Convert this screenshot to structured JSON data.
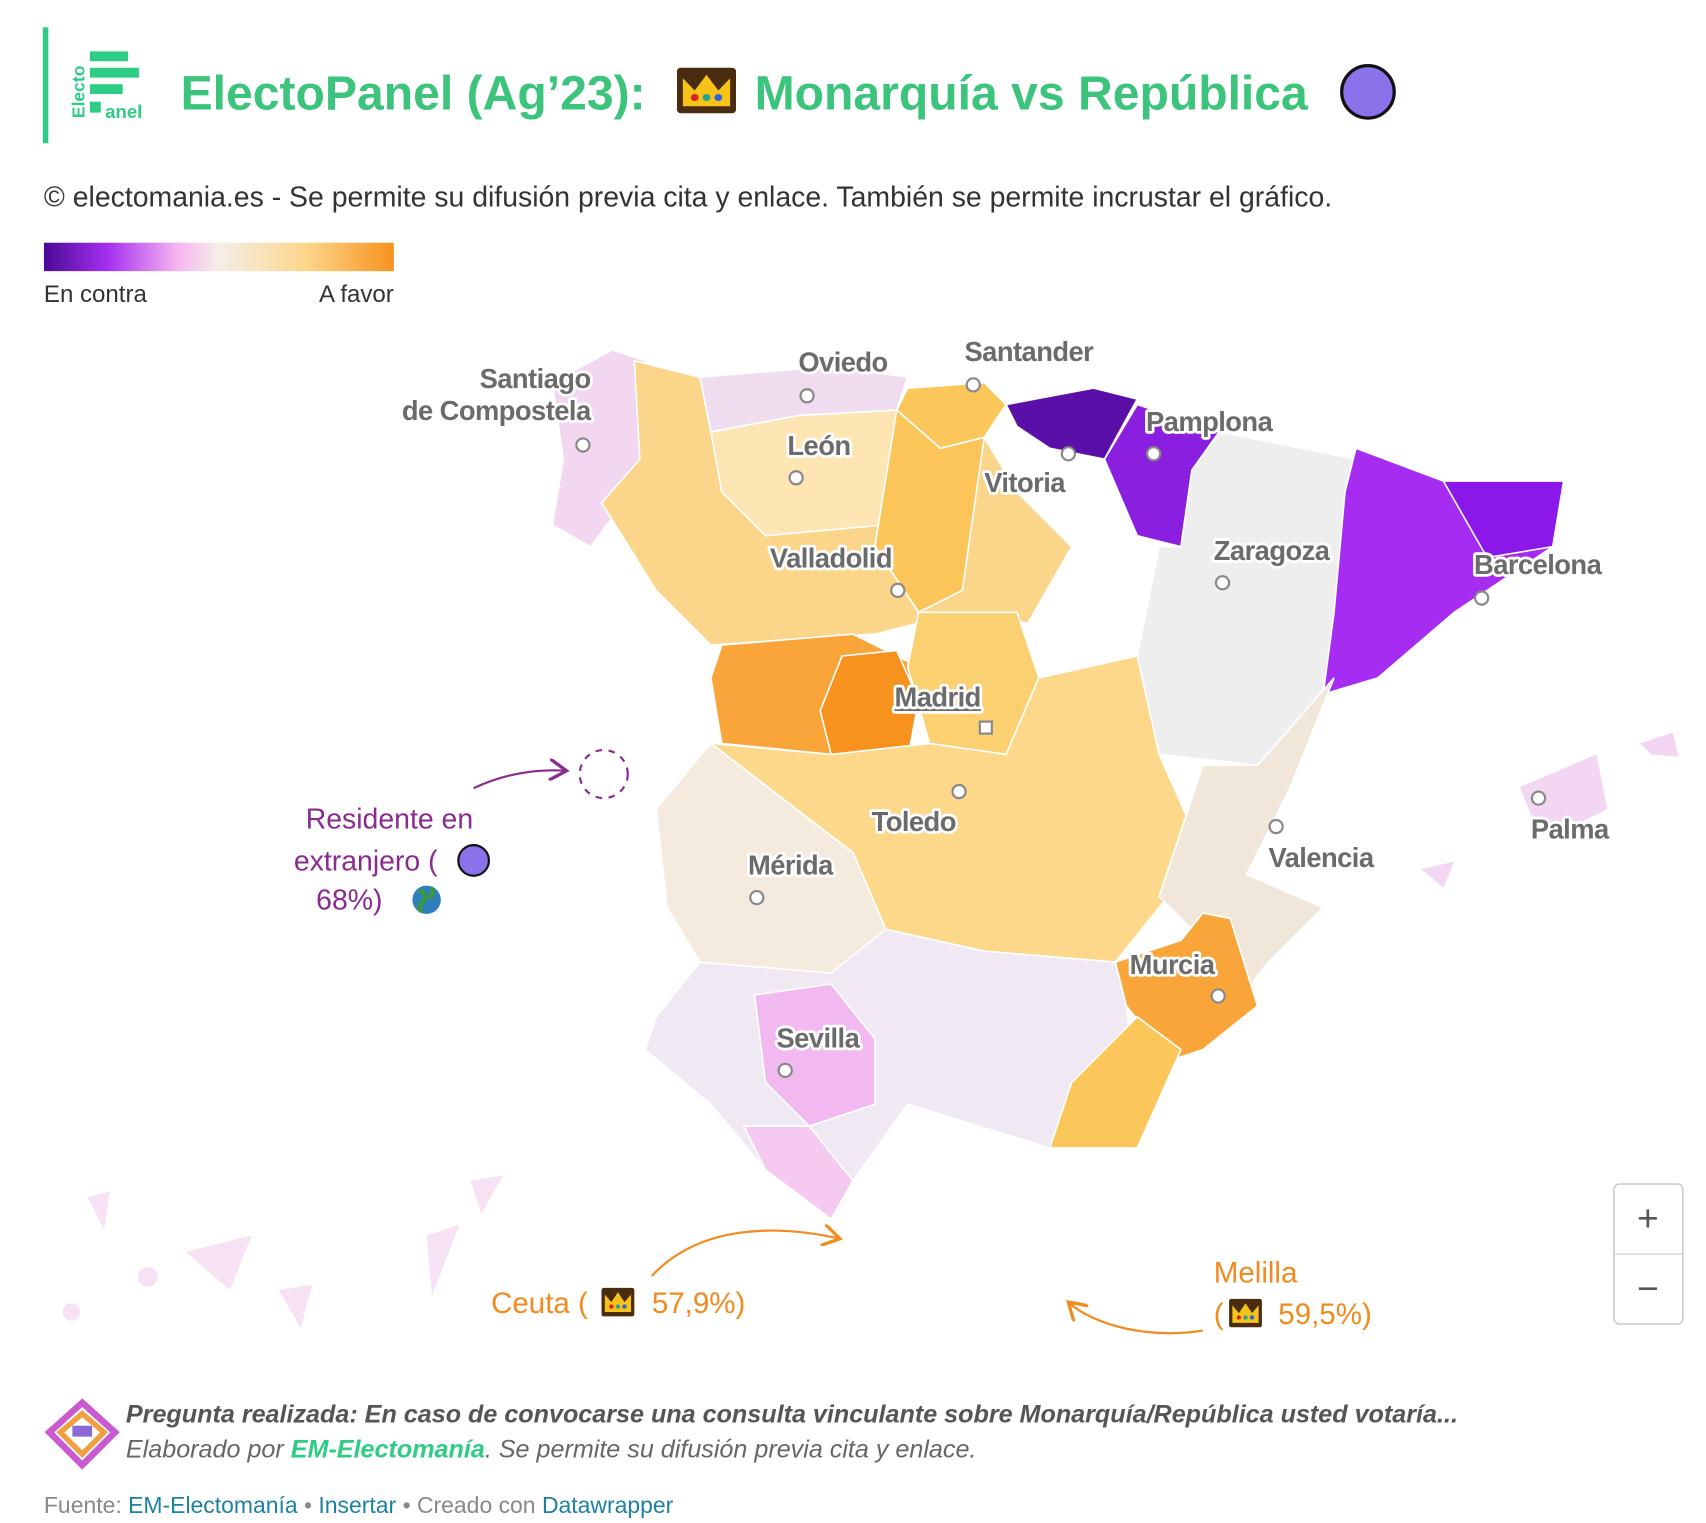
{
  "header": {
    "logo": {
      "line1": "Electo",
      "line2": "anel"
    },
    "title_part1": "ElectoPanel (Ag’23):",
    "title_part2": "Monarquía vs República",
    "subtitle": "© electomania.es - Se permite su difusión previa cita y enlace. También se permite incrustar el gráfico."
  },
  "legend": {
    "low": "En contra",
    "high": "A favor"
  },
  "map": {
    "cities": [
      {
        "lines": [
          "Santiago",
          "de Compostela"
        ]
      },
      {
        "lines": [
          "Oviedo"
        ]
      },
      {
        "lines": [
          "Santander"
        ]
      },
      {
        "lines": [
          "León"
        ]
      },
      {
        "lines": [
          "Vitoria"
        ]
      },
      {
        "lines": [
          "Pamplona"
        ]
      },
      {
        "lines": [
          "Zaragoza"
        ]
      },
      {
        "lines": [
          "Barcelona"
        ]
      },
      {
        "lines": [
          "Valladolid"
        ]
      },
      {
        "lines": [
          "Madrid"
        ]
      },
      {
        "lines": [
          "Toledo"
        ]
      },
      {
        "lines": [
          "Mérida"
        ]
      },
      {
        "lines": [
          "Valencia"
        ]
      },
      {
        "lines": [
          "Palma"
        ]
      },
      {
        "lines": [
          "Murcia"
        ]
      },
      {
        "lines": [
          "Sevilla"
        ]
      }
    ]
  },
  "annotations": {
    "abroad": {
      "lines": [
        "Residente en",
        "extranjero (",
        "68%)"
      ]
    },
    "ceuta": {
      "label": "Ceuta (",
      "value": "57,9%)"
    },
    "melilla": {
      "lines": [
        "Melilla",
        "(",
        "59,5%)"
      ]
    }
  },
  "zoom": {
    "in": "+",
    "out": "−"
  },
  "footer": {
    "question": "Pregunta realizada: En caso de convocarse una consulta vinculante sobre Monarquía/República usted votaría...",
    "credit": {
      "prefix": "Elaborado por",
      "link": "EM-Electomanía",
      "suffix": ". Se permite su difusión previa cita y enlace."
    },
    "source": {
      "label": "Fuente:",
      "source_link": "EM-Electomanía",
      "sep1": "•",
      "embed": "Insertar",
      "created": "• Creado con",
      "tool": "Datawrapper"
    }
  }
}
